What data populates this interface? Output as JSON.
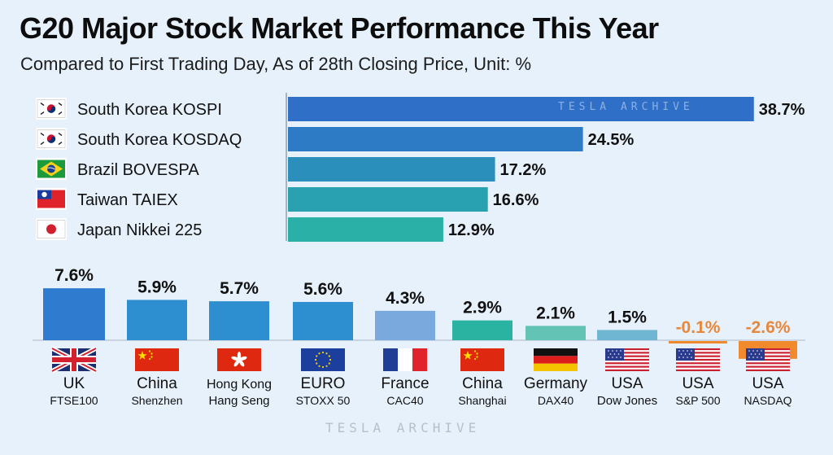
{
  "title": "G20 Major Stock Market Performance This Year",
  "subtitle": "Compared to First Trading Day, As of 28th Closing Price, Unit: %",
  "watermark": "TESLA ARCHIVE",
  "chart_data": [
    {
      "type": "bar",
      "orientation": "horizontal",
      "unit": "%",
      "categories": [
        "South Korea KOSPI",
        "South Korea KOSDAQ",
        "Brazil BOVESPA",
        "Taiwan TAIEX",
        "Japan Nikkei 225"
      ],
      "values": [
        38.7,
        24.5,
        17.2,
        16.6,
        12.9
      ],
      "value_labels": [
        "38.7%",
        "24.5%",
        "17.2%",
        "16.6%",
        "12.9%"
      ],
      "flags": [
        "flag-south-korea",
        "flag-south-korea",
        "flag-brazil",
        "flag-taiwan",
        "flag-japan"
      ],
      "colors": [
        "#2f6fc7",
        "#2c7bc4",
        "#2b8fbb",
        "#29a1b0",
        "#2bb0a8"
      ],
      "xlim": [
        0,
        40
      ]
    },
    {
      "type": "bar",
      "orientation": "vertical",
      "unit": "%",
      "categories": [
        "UK",
        "China",
        "Hong Kong",
        "EURO",
        "France",
        "China",
        "Germany",
        "USA",
        "USA",
        "USA"
      ],
      "indices": [
        "FTSE100",
        "Shenzhen",
        "Hang Seng",
        "STOXX 50",
        "CAC40",
        "Shanghai",
        "DAX40",
        "Dow Jones",
        "S&P 500",
        "NASDAQ"
      ],
      "values": [
        7.6,
        5.9,
        5.7,
        5.6,
        4.3,
        2.9,
        2.1,
        1.5,
        -0.1,
        -2.6
      ],
      "value_labels": [
        "7.6%",
        "5.9%",
        "5.7%",
        "5.6%",
        "4.3%",
        "2.9%",
        "2.1%",
        "1.5%",
        "-0.1%",
        "-2.6%"
      ],
      "flags": [
        "flag-uk",
        "flag-china",
        "flag-hong-kong",
        "flag-eu",
        "flag-france",
        "flag-china",
        "flag-germany",
        "flag-usa",
        "flag-usa",
        "flag-usa"
      ],
      "colors": [
        "#2e7bd0",
        "#2e8fd0",
        "#2e8fd0",
        "#2e8fd0",
        "#7aa9dd",
        "#2ab3a0",
        "#63c3b4",
        "#6fb6d3",
        "#f08a2c",
        "#f08a2c"
      ],
      "ylim": [
        -3,
        8
      ]
    }
  ]
}
